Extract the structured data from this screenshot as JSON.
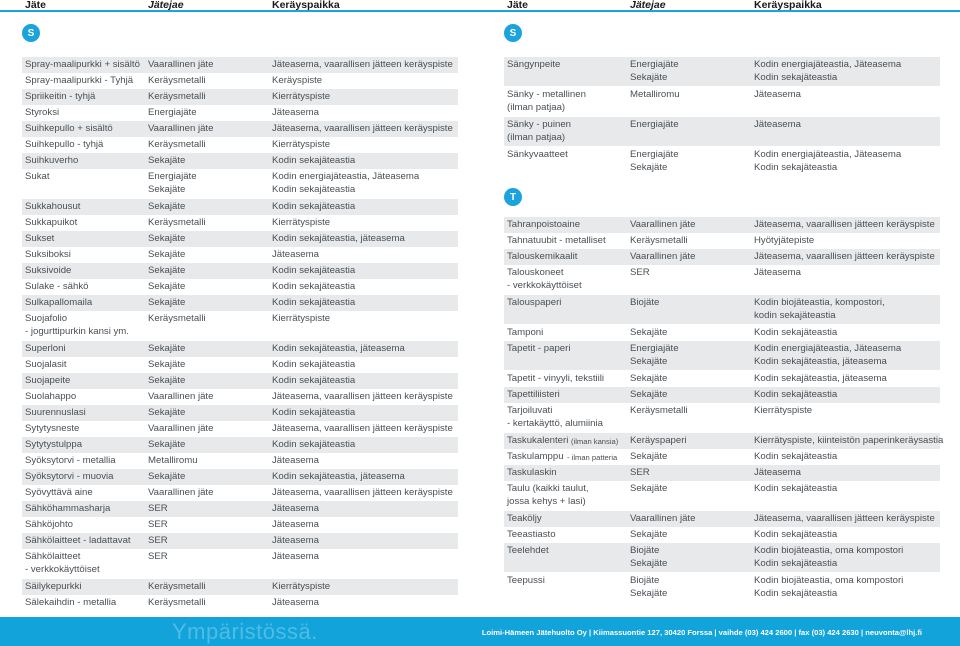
{
  "headers": {
    "col1": "Jäte",
    "col2": "Jätejae",
    "col3": "Keräyspaikka"
  },
  "colors": {
    "accent": "#1aa3dc",
    "row_shade": "#e8e9ea",
    "text": "#4a4f55"
  },
  "left": {
    "letter": "S",
    "rows": [
      {
        "a": "Spray-maalipurkki + sisältö",
        "b": "Vaarallinen jäte",
        "c": "Jäteasema, vaarallisen jätteen keräyspiste"
      },
      {
        "a": "Spray-maalipurkki - Tyhjä",
        "b": "Keräysmetalli",
        "c": "Keräyspiste"
      },
      {
        "a": "Spriikeitin - tyhjä",
        "b": "Keräysmetalli",
        "c": "Kierrätyspiste"
      },
      {
        "a": "Styroksi",
        "b": "Energiajäte",
        "c": "Jäteasema"
      },
      {
        "a": "Suihkepullo + sisältö",
        "b": "Vaarallinen jäte",
        "c": "Jäteasema, vaarallisen jätteen keräyspiste"
      },
      {
        "a": "Suihkepullo - tyhjä",
        "b": "Keräysmetalli",
        "c": "Kierrätyspiste"
      },
      {
        "a": "Suihkuverho",
        "b": "Sekajäte",
        "c": "Kodin sekajäteastia"
      },
      {
        "a": "Sukat",
        "b": "Energiajäte",
        "c": "Kodin energiajäteastia, Jäteasema",
        "b2": "Sekajäte",
        "c2": "Kodin sekajäteastia"
      },
      {
        "a": "Sukkahousut",
        "b": "Sekajäte",
        "c": "Kodin sekajäteastia"
      },
      {
        "a": "Sukkapuikot",
        "b": "Keräysmetalli",
        "c": "Kierrätyspiste"
      },
      {
        "a": "Sukset",
        "b": "Sekajäte",
        "c": "Kodin sekajäteastia, jäteasema"
      },
      {
        "a": "Suksiboksi",
        "b": "Sekajäte",
        "c": "Jäteasema"
      },
      {
        "a": "Suksivoide",
        "b": "Sekajäte",
        "c": "Kodin sekajäteastia"
      },
      {
        "a": "Sulake - sähkö",
        "b": "Sekajäte",
        "c": "Kodin sekajäteastia"
      },
      {
        "a": "Sulkapallomaila",
        "b": "Sekajäte",
        "c": "Kodin sekajäteastia"
      },
      {
        "a": "Suojafolio",
        "a2": "- jogurttipurkin kansi ym.",
        "b": "Keräysmetalli",
        "c": "Kierrätyspiste"
      },
      {
        "a": "Superloni",
        "b": "Sekajäte",
        "c": "Kodin sekajäteastia, jäteasema"
      },
      {
        "a": "Suojalasit",
        "b": "Sekajäte",
        "c": "Kodin sekajäteastia"
      },
      {
        "a": "Suojapeite",
        "b": "Sekajäte",
        "c": "Kodin sekajäteastia"
      },
      {
        "a": "Suolahappo",
        "b": "Vaarallinen jäte",
        "c": "Jäteasema, vaarallisen jätteen keräyspiste"
      },
      {
        "a": "Suurennuslasi",
        "b": "Sekajäte",
        "c": "Kodin sekajäteastia"
      },
      {
        "a": "Sytytysneste",
        "b": "Vaarallinen jäte",
        "c": "Jäteasema, vaarallisen jätteen keräyspiste"
      },
      {
        "a": "Sytytystulppa",
        "b": "Sekajäte",
        "c": "Kodin sekajäteastia"
      },
      {
        "a": "Syöksytorvi - metallia",
        "b": "Metalliromu",
        "c": "Jäteasema"
      },
      {
        "a": "Syöksytorvi - muovia",
        "b": "Sekajäte",
        "c": "Kodin sekajäteastia, jäteasema"
      },
      {
        "a": "Syövyttävä aine",
        "b": "Vaarallinen jäte",
        "c": "Jäteasema, vaarallisen jätteen keräyspiste"
      },
      {
        "a": "Sähköhammasharja",
        "b": "SER",
        "c": "Jäteasema"
      },
      {
        "a": "Sähköjohto",
        "b": "SER",
        "c": "Jäteasema"
      },
      {
        "a": "Sähkölaitteet - ladattavat",
        "b": "SER",
        "c": "Jäteasema"
      },
      {
        "a": "Sähkölaitteet",
        "a2": "- verkkokäyttöiset",
        "b": "SER",
        "c": "Jäteasema"
      },
      {
        "a": "Säilykepurkki",
        "b": "Keräysmetalli",
        "c": "Kierrätyspiste"
      },
      {
        "a": "Sälekaihdin - metallia",
        "b": "Keräysmetalli",
        "c": "Jäteasema"
      }
    ]
  },
  "right": {
    "letter_s": "S",
    "rows_s": [
      {
        "a": "Sängynpeite",
        "b": "Energiajäte",
        "c": "Kodin energiajäteastia, Jäteasema",
        "b2": "Sekajäte",
        "c2": "Kodin sekajäteastia"
      },
      {
        "a": "Sänky - metallinen",
        "a2": "(ilman patjaa)",
        "b": "Metalliromu",
        "c": "Jäteasema"
      },
      {
        "a": "Sänky - puinen",
        "a2": "(ilman patjaa)",
        "b": "Energiajäte",
        "c": "Jäteasema"
      },
      {
        "a": "Sänkyvaatteet",
        "b": "Energiajäte",
        "c": "Kodin energiajäteastia, Jäteasema",
        "b2": "Sekajäte",
        "c2": "Kodin sekajäteastia"
      }
    ],
    "letter_t": "T",
    "rows_t": [
      {
        "a": "Tahranpoistoaine",
        "b": "Vaarallinen jäte",
        "c": "Jäteasema, vaarallisen jätteen keräyspiste"
      },
      {
        "a": "Tahnatuubit - metalliset",
        "b": "Keräysmetalli",
        "c": "Hyötyjätepiste"
      },
      {
        "a": "Talouskemikaalit",
        "b": "Vaarallinen jäte",
        "c": "Jäteasema, vaarallisen jätteen keräyspiste"
      },
      {
        "a": "Talouskoneet",
        "a2": "- verkkokäyttöiset",
        "b": "SER",
        "c": "Jäteasema"
      },
      {
        "a": "Talouspaperi",
        "b": "Biojäte",
        "c": "Kodin biojäteastia, kompostori,",
        "c2": "kodin sekajäteastia"
      },
      {
        "a": "Tamponi",
        "b": "Sekajäte",
        "c": "Kodin sekajäteastia"
      },
      {
        "a": "Tapetit - paperi",
        "b": "Energiajäte",
        "c": "Kodin energiajäteastia, Jäteasema",
        "b2": "Sekajäte",
        "c2": "Kodin sekajäteastia, jäteasema"
      },
      {
        "a": "Tapetit - vinyyli, tekstiili",
        "b": "Sekajäte",
        "c": "Kodin sekajäteastia, jäteasema"
      },
      {
        "a": "Tapettiliisteri",
        "b": "Sekajäte",
        "c": "Kodin sekajäteastia"
      },
      {
        "a": "Tarjoiluvati",
        "a2": "- kertakäyttö, alumiinia",
        "b": "Keräysmetalli",
        "c": "Kierrätyspiste"
      },
      {
        "a": "Taskukalenteri",
        "a_small": "(ilman kansia)",
        "b": "Keräyspaperi",
        "c": "Kierrätyspiste, kiinteistön paperinkeräysastia"
      },
      {
        "a": "Taskulamppu",
        "a_small": "- ilman patteria",
        "b": "Sekajäte",
        "c": "Kodin sekajäteastia"
      },
      {
        "a": "Taskulaskin",
        "b": "SER",
        "c": "Jäteasema"
      },
      {
        "a": "Taulu (kaikki taulut,",
        "a2": "jossa kehys + lasi)",
        "b": "Sekajäte",
        "c": "Kodin sekajäteastia"
      },
      {
        "a": "Teaköljy",
        "b": "Vaarallinen jäte",
        "c": "Jäteasema, vaarallisen jätteen keräyspiste"
      },
      {
        "a": "Teeastiasto",
        "b": "Sekajäte",
        "c": "Kodin sekajäteastia"
      },
      {
        "a": "Teelehdet",
        "b": "Biojäte",
        "c": "Kodin biojäteastia, oma kompostori",
        "b2": "Sekajäte",
        "c2": "Kodin sekajäteastia"
      },
      {
        "a": "Teepussi",
        "b": "Biojäte",
        "c": "Kodin biojäteastia, oma kompostori",
        "b2": "Sekajäte",
        "c2": "Kodin sekajäteastia"
      }
    ]
  },
  "footer": {
    "watermark": "Ympäristössä.",
    "org": "Loimi-Hämeen Jätehuolto Oy",
    "address": "Kiimassuontie 127, 30420 Forssa",
    "phone": "vaihde (03) 424 2600",
    "fax": "fax (03) 424 2630",
    "email": "neuvonta@lhj.fi"
  }
}
